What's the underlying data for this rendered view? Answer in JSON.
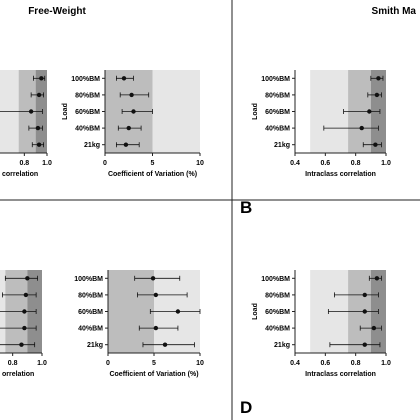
{
  "headers": {
    "left": "Free-Weight",
    "right": "Smith Ma"
  },
  "panel_letters": {
    "b": "B",
    "d": "D"
  },
  "chart_data": [
    {
      "id": "tl-icc",
      "type": "scatter",
      "xlabel": "correlation",
      "ylabel": "",
      "xlim": [
        0.4,
        1.0
      ],
      "bands": [
        0.5,
        0.75,
        0.9
      ],
      "xticks": [
        0.8,
        1.0
      ],
      "xtick_labels": [
        "0.8",
        "1.0"
      ],
      "categories": [
        "100%BM",
        "80%BM",
        "60%BM",
        "40%BM",
        "21kg"
      ],
      "show_category_labels": false,
      "points": [
        {
          "category": "100%BM",
          "value": 0.95,
          "lo": 0.88,
          "hi": 0.98
        },
        {
          "category": "80%BM",
          "value": 0.93,
          "lo": 0.86,
          "hi": 0.97
        },
        {
          "category": "60%BM",
          "value": 0.86,
          "lo": 0.46,
          "hi": 0.96
        },
        {
          "category": "40%BM",
          "value": 0.92,
          "lo": 0.84,
          "hi": 0.96
        },
        {
          "category": "21kg",
          "value": 0.93,
          "lo": 0.87,
          "hi": 0.97
        }
      ]
    },
    {
      "id": "tl-cv",
      "type": "scatter",
      "xlabel": "Coefficient of Variation (%)",
      "ylabel": "Load",
      "xlim": [
        0,
        10
      ],
      "bands": [
        5
      ],
      "xticks": [
        0,
        5,
        10
      ],
      "xtick_labels": [
        "0",
        "5",
        "10"
      ],
      "categories": [
        "100%BM",
        "80%BM",
        "60%BM",
        "40%BM",
        "21kg"
      ],
      "show_category_labels": true,
      "points": [
        {
          "category": "100%BM",
          "value": 2.0,
          "lo": 1.2,
          "hi": 3.0
        },
        {
          "category": "80%BM",
          "value": 2.8,
          "lo": 1.6,
          "hi": 4.6
        },
        {
          "category": "60%BM",
          "value": 3.0,
          "lo": 1.8,
          "hi": 5.0
        },
        {
          "category": "40%BM",
          "value": 2.5,
          "lo": 1.4,
          "hi": 3.8
        },
        {
          "category": "21kg",
          "value": 2.2,
          "lo": 1.2,
          "hi": 3.6
        }
      ]
    },
    {
      "id": "tr-icc",
      "type": "scatter",
      "xlabel": "Intraclass correlation",
      "ylabel": "Load",
      "xlim": [
        0.4,
        1.0
      ],
      "bands": [
        0.5,
        0.75,
        0.9
      ],
      "xticks": [
        0.4,
        0.6,
        0.8,
        1.0
      ],
      "xtick_labels": [
        "0.4",
        "0.6",
        "0.8",
        "1.0"
      ],
      "categories": [
        "100%BM",
        "80%BM",
        "60%BM",
        "40%BM",
        "21kg"
      ],
      "show_category_labels": true,
      "points": [
        {
          "category": "100%BM",
          "value": 0.95,
          "lo": 0.9,
          "hi": 0.98
        },
        {
          "category": "80%BM",
          "value": 0.94,
          "lo": 0.88,
          "hi": 0.97
        },
        {
          "category": "60%BM",
          "value": 0.89,
          "lo": 0.72,
          "hi": 0.96
        },
        {
          "category": "40%BM",
          "value": 0.84,
          "lo": 0.59,
          "hi": 0.95
        },
        {
          "category": "21kg",
          "value": 0.93,
          "lo": 0.85,
          "hi": 0.97
        }
      ]
    },
    {
      "id": "bl-icc",
      "type": "scatter",
      "xlabel": "orrelation",
      "ylabel": "",
      "xlim": [
        0.4,
        1.0
      ],
      "bands": [
        0.5,
        0.75,
        0.9
      ],
      "xticks": [
        0.8,
        1.0
      ],
      "xtick_labels": [
        "0.8",
        "1.0"
      ],
      "categories": [
        "100%BM",
        "80%BM",
        "60%BM",
        "40%BM",
        "21kg"
      ],
      "show_category_labels": false,
      "points": [
        {
          "category": "100%BM",
          "value": 0.9,
          "lo": 0.75,
          "hi": 0.97
        },
        {
          "category": "80%BM",
          "value": 0.89,
          "lo": 0.73,
          "hi": 0.96
        },
        {
          "category": "60%BM",
          "value": 0.88,
          "lo": 0.7,
          "hi": 0.96
        },
        {
          "category": "40%BM",
          "value": 0.88,
          "lo": 0.71,
          "hi": 0.96
        },
        {
          "category": "21kg",
          "value": 0.86,
          "lo": 0.68,
          "hi": 0.95
        }
      ]
    },
    {
      "id": "bl-cv",
      "type": "scatter",
      "xlabel": "Coefficient of Variation (%)",
      "ylabel": "",
      "xlim": [
        0,
        10
      ],
      "bands": [
        5
      ],
      "xticks": [
        0,
        5,
        10
      ],
      "xtick_labels": [
        "0",
        "5",
        "10"
      ],
      "categories": [
        "100%BM",
        "80%BM",
        "60%BM",
        "40%BM",
        "21kg"
      ],
      "show_category_labels": true,
      "points": [
        {
          "category": "100%BM",
          "value": 4.9,
          "lo": 2.9,
          "hi": 7.8
        },
        {
          "category": "80%BM",
          "value": 5.2,
          "lo": 3.2,
          "hi": 8.6
        },
        {
          "category": "60%BM",
          "value": 7.6,
          "lo": 4.6,
          "hi": 10.0
        },
        {
          "category": "40%BM",
          "value": 5.2,
          "lo": 3.4,
          "hi": 7.6
        },
        {
          "category": "21kg",
          "value": 6.2,
          "lo": 3.8,
          "hi": 9.4
        }
      ]
    },
    {
      "id": "br-icc",
      "type": "scatter",
      "xlabel": "Intraclass correlation",
      "ylabel": "Load",
      "xlim": [
        0.4,
        1.0
      ],
      "bands": [
        0.5,
        0.75,
        0.9
      ],
      "xticks": [
        0.4,
        0.6,
        0.8,
        1.0
      ],
      "xtick_labels": [
        "0.4",
        "0.6",
        "0.8",
        "1.0"
      ],
      "categories": [
        "100%BM",
        "80%BM",
        "60%BM",
        "40%BM",
        "21kg"
      ],
      "show_category_labels": true,
      "points": [
        {
          "category": "100%BM",
          "value": 0.94,
          "lo": 0.89,
          "hi": 0.97
        },
        {
          "category": "80%BM",
          "value": 0.86,
          "lo": 0.66,
          "hi": 0.95
        },
        {
          "category": "60%BM",
          "value": 0.86,
          "lo": 0.62,
          "hi": 0.95
        },
        {
          "category": "40%BM",
          "value": 0.92,
          "lo": 0.83,
          "hi": 0.97
        },
        {
          "category": "21kg",
          "value": 0.86,
          "lo": 0.63,
          "hi": 0.96
        }
      ]
    }
  ],
  "colors": {
    "band_light": "#e6e6e6",
    "band_mid": "#bdbdbd",
    "band_dark": "#8e8e8e",
    "point": "#111111",
    "divider": "#222222"
  }
}
